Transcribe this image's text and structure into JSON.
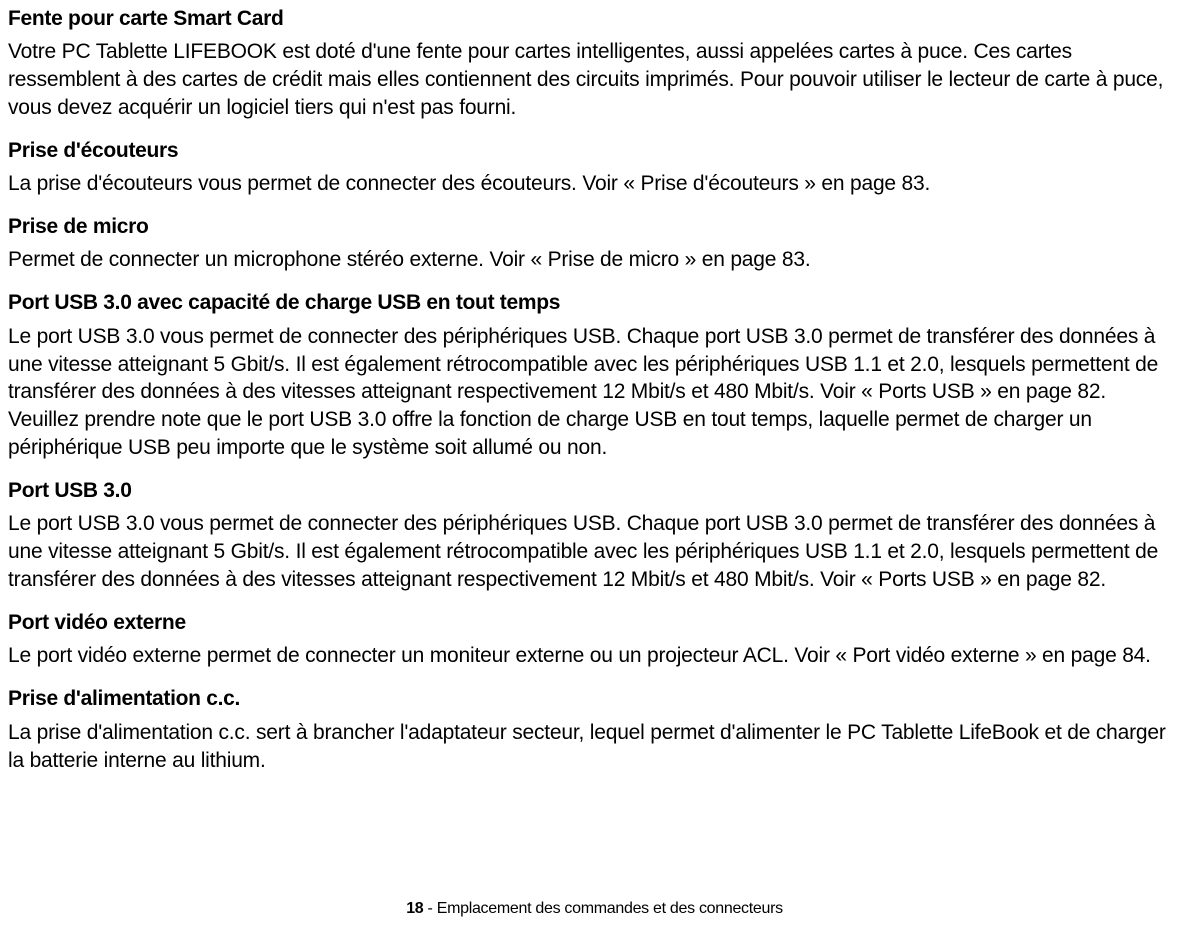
{
  "sections": [
    {
      "heading": "Fente pour carte Smart Card",
      "body": "Votre PC Tablette LIFEBOOK est doté d'une fente pour cartes intelligentes, aussi appelées cartes à puce. Ces cartes ressemblent à des cartes de crédit mais elles contiennent des circuits imprimés. Pour pouvoir utiliser le lecteur de carte à puce, vous devez acquérir un logiciel tiers qui n'est pas fourni."
    },
    {
      "heading": "Prise d'écouteurs",
      "body": "La prise d'écouteurs vous permet de connecter des écouteurs. Voir « Prise d'écouteurs » en page 83."
    },
    {
      "heading": "Prise de micro",
      "body": "Permet de connecter un microphone stéréo externe. Voir « Prise de micro » en page 83."
    },
    {
      "heading": "Port USB 3.0 avec capacité de charge USB en tout temps",
      "body": "Le port USB 3.0 vous permet de connecter des périphériques USB. Chaque port USB 3.0 permet de transférer des données à une vitesse atteignant 5 Gbit/s. Il est également rétrocompatible avec les périphériques USB 1.1 et 2.0, lesquels permettent de transférer des données à des vitesses atteignant respectivement 12 Mbit/s et 480 Mbit/s. Voir « Ports USB » en page 82. Veuillez prendre note que le port USB 3.0 offre la fonction de charge USB en tout temps, laquelle permet de charger un périphérique USB peu importe que le système soit allumé ou non."
    },
    {
      "heading": "Port USB 3.0",
      "body": "Le port USB 3.0 vous permet de connecter des périphériques USB. Chaque port USB 3.0 permet de transférer des données à une vitesse atteignant 5 Gbit/s. Il est également rétrocompatible avec les périphériques USB 1.1 et 2.0, lesquels permettent de transférer des données à des vitesses atteignant respectivement 12 Mbit/s et 480 Mbit/s. Voir « Ports USB » en page 82."
    },
    {
      "heading": "Port vidéo externe",
      "body": "Le port vidéo externe permet de connecter un moniteur externe ou un projecteur ACL. Voir « Port vidéo externe » en page 84."
    },
    {
      "heading": "Prise d'alimentation c.c.",
      "body": "La prise d'alimentation c.c. sert à brancher l'adaptateur secteur, lequel permet d'alimenter le PC Tablette LifeBook et de charger la batterie interne au lithium."
    }
  ],
  "footer": {
    "page_number": "18",
    "caption": " - Emplacement des commandes et des connecteurs"
  },
  "colors": {
    "background": "#ffffff",
    "text": "#000000"
  },
  "typography": {
    "heading_fontsize": 21,
    "heading_weight": 700,
    "body_fontsize": 21,
    "body_weight": 400,
    "footer_fontsize": 16
  }
}
